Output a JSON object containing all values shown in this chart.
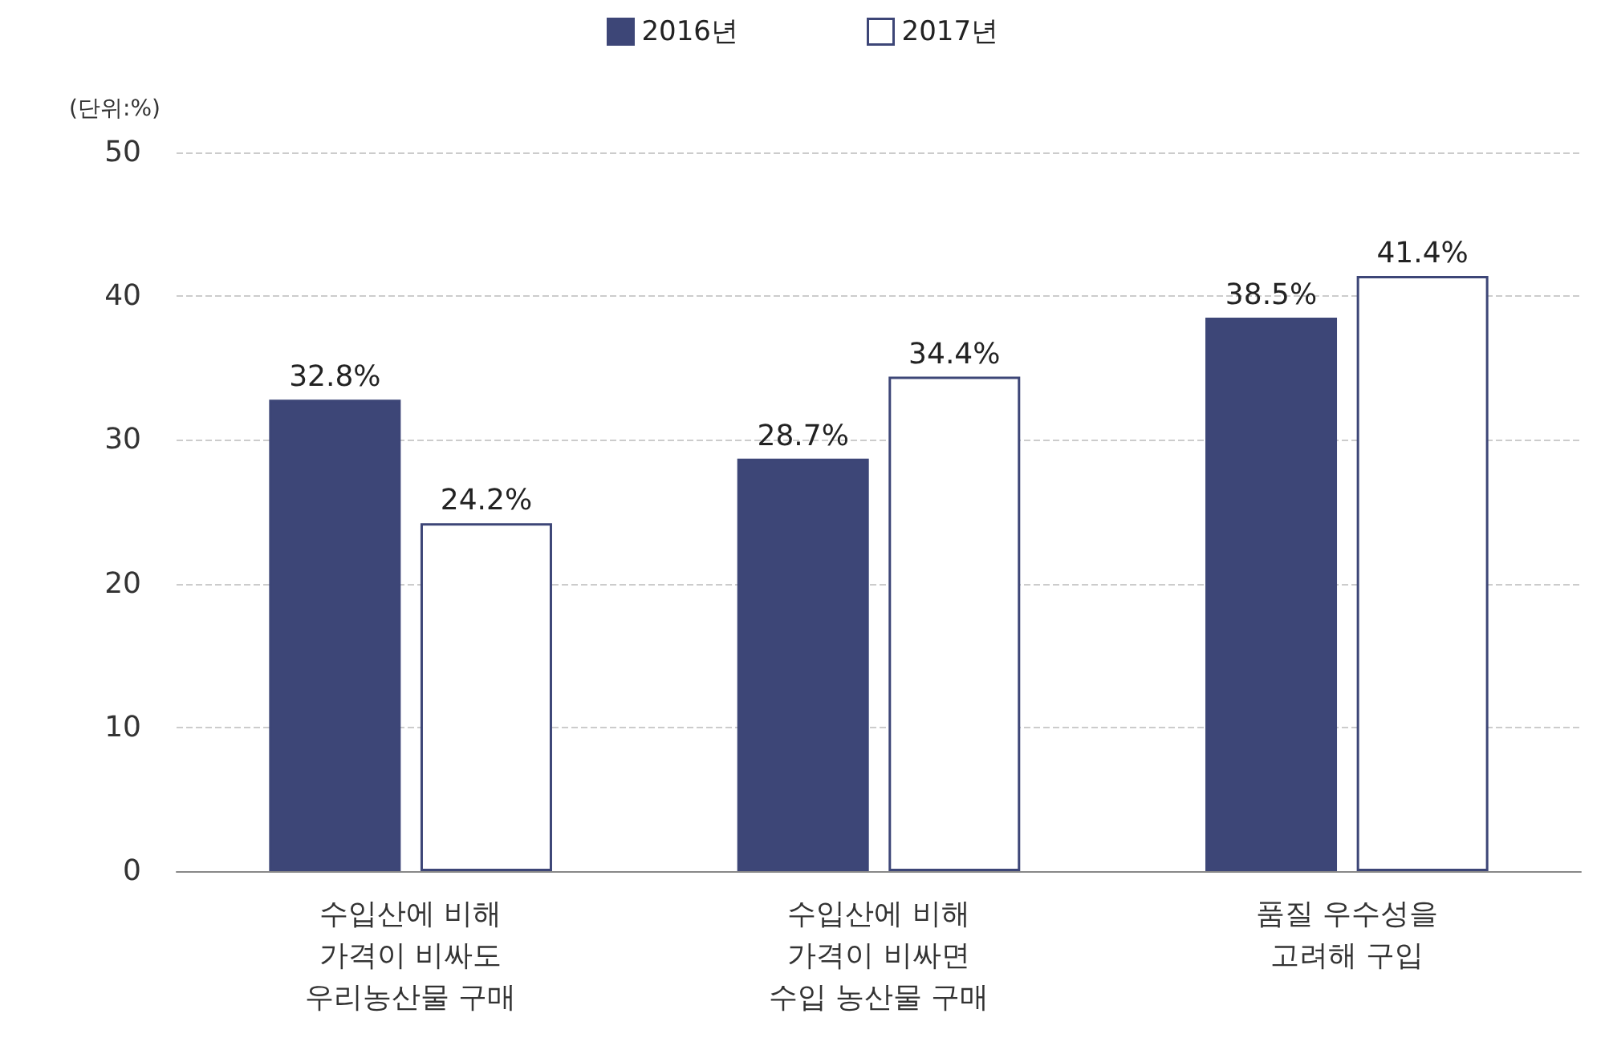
{
  "chart_data": {
    "type": "bar",
    "ylabel": "(단위:%)",
    "categories": [
      "수입산에 비해\n가격이 비싸도\n우리농산물 구매",
      "수입산에 비해\n가격이 비싸면\n수입 농산물 구매",
      "품질 우수성을\n고려해 구입"
    ],
    "series": [
      {
        "name": "2016년",
        "color": "#3d4677",
        "values": [
          32.8,
          28.7,
          38.5
        ],
        "value_labels": [
          "32.8%",
          "28.7%",
          "38.5%"
        ]
      },
      {
        "name": "2017년",
        "color": "#ffffff",
        "values": [
          24.2,
          34.4,
          41.4
        ],
        "value_labels": [
          "24.2%",
          "34.4%",
          "41.4%"
        ]
      }
    ],
    "ylim": [
      0,
      50
    ],
    "yticks": [
      0,
      10,
      20,
      30,
      40,
      50
    ],
    "grid": "y",
    "legend": "top"
  }
}
